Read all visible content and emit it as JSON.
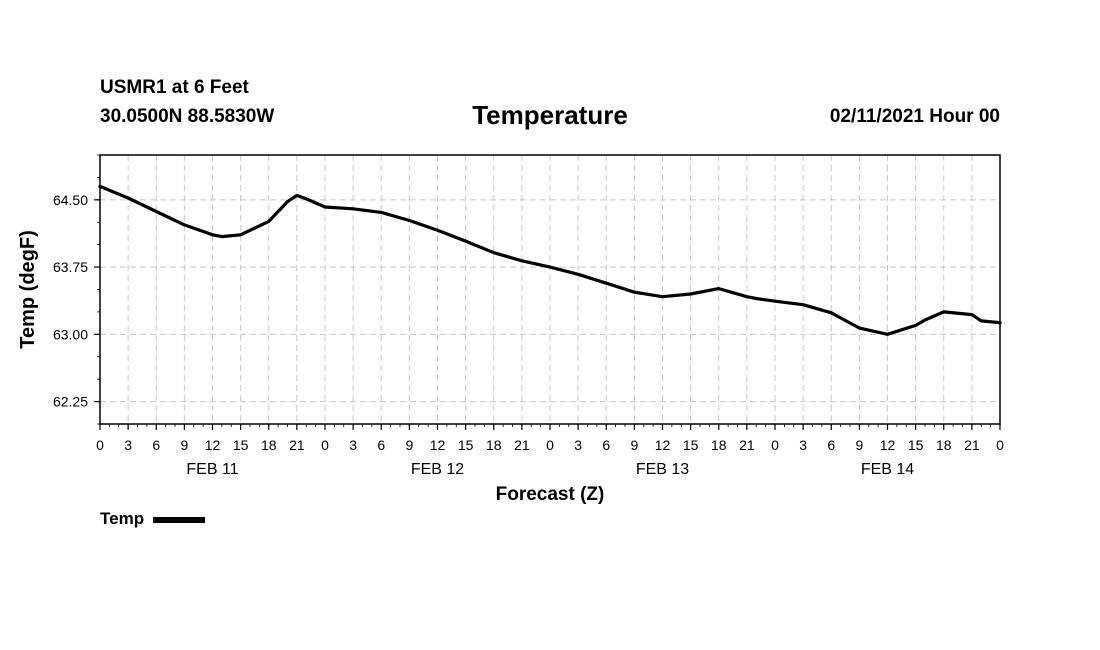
{
  "header": {
    "station": "USMR1 at 6 Feet",
    "coords": "30.0500N 88.5830W",
    "title": "Temperature",
    "datetime": "02/11/2021 Hour 00"
  },
  "legend": {
    "label": "Temp"
  },
  "chart_data": {
    "type": "line",
    "title": "Temperature",
    "xlabel": "Forecast (Z)",
    "ylabel": "Temp (degF)",
    "xlim": [
      0,
      96
    ],
    "ylim": [
      62.0,
      65.0
    ],
    "grid": true,
    "yticks": [
      62.25,
      63.0,
      63.75,
      64.5
    ],
    "ytick_labels": [
      "62.25",
      "63.00",
      "63.75",
      "64.50"
    ],
    "xtick_labels": [
      "0",
      "3",
      "6",
      "9",
      "12",
      "15",
      "18",
      "21",
      "0",
      "3",
      "6",
      "9",
      "12",
      "15",
      "18",
      "21",
      "0",
      "3",
      "6",
      "9",
      "12",
      "15",
      "18",
      "21",
      "0",
      "3",
      "6",
      "9",
      "12",
      "15",
      "18",
      "21",
      "0"
    ],
    "day_labels": [
      {
        "label": "FEB 11",
        "at_hour": 12
      },
      {
        "label": "FEB 12",
        "at_hour": 36
      },
      {
        "label": "FEB 13",
        "at_hour": 60
      },
      {
        "label": "FEB 14",
        "at_hour": 84
      }
    ],
    "series": [
      {
        "name": "Temp",
        "color": "#000000",
        "x": [
          0,
          3,
          6,
          9,
          12,
          13,
          15,
          18,
          20,
          21,
          22,
          24,
          27,
          30,
          33,
          36,
          39,
          42,
          45,
          48,
          51,
          54,
          57,
          60,
          63,
          66,
          69,
          70,
          72,
          75,
          78,
          81,
          84,
          87,
          88,
          90,
          93,
          94,
          96
        ],
        "y": [
          64.65,
          64.52,
          64.37,
          64.22,
          64.11,
          64.09,
          64.11,
          64.26,
          64.48,
          64.55,
          64.51,
          64.42,
          64.4,
          64.36,
          64.27,
          64.16,
          64.04,
          63.91,
          63.82,
          63.75,
          63.67,
          63.57,
          63.47,
          63.42,
          63.45,
          63.51,
          63.42,
          63.4,
          63.37,
          63.33,
          63.24,
          63.07,
          63.0,
          63.1,
          63.16,
          63.25,
          63.22,
          63.15,
          63.13
        ]
      }
    ]
  }
}
